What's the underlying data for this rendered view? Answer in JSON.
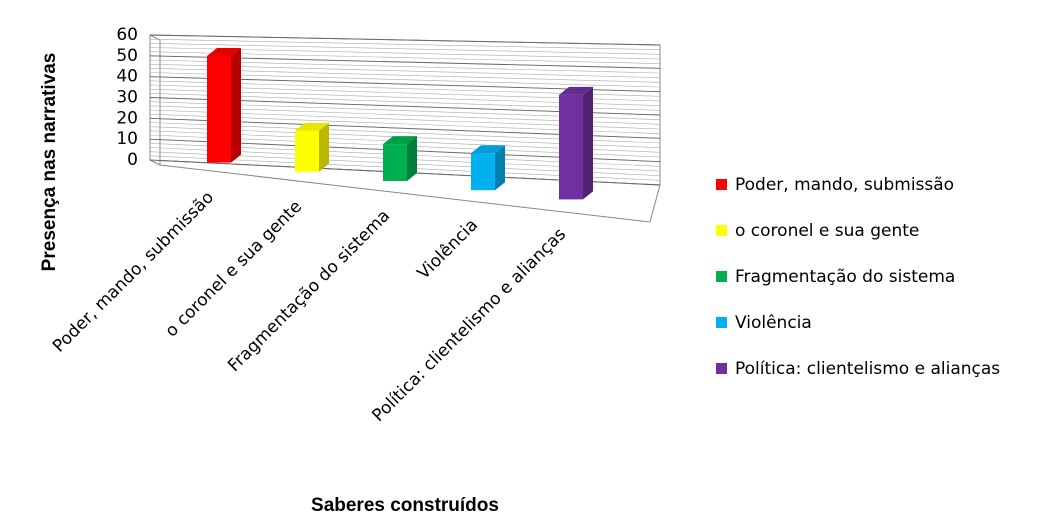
{
  "chart_data": {
    "type": "bar3d",
    "x_label": "Saberes construídos",
    "y_label": "Presença nas narrativas",
    "categories": [
      "Poder, mando, submissão",
      "o coronel e sua gente",
      "Fragmentação do sistema",
      "Violência",
      "Política: clientelismo e alianças"
    ],
    "values": [
      52,
      20,
      18,
      18,
      51
    ],
    "colors": [
      "#ff0000",
      "#ffff00",
      "#00b050",
      "#00b0f0",
      "#7030a0"
    ],
    "ylim": [
      0,
      60
    ],
    "yticks": [
      0,
      10,
      20,
      30,
      40,
      50,
      60
    ],
    "grid": true,
    "legend": "right"
  }
}
